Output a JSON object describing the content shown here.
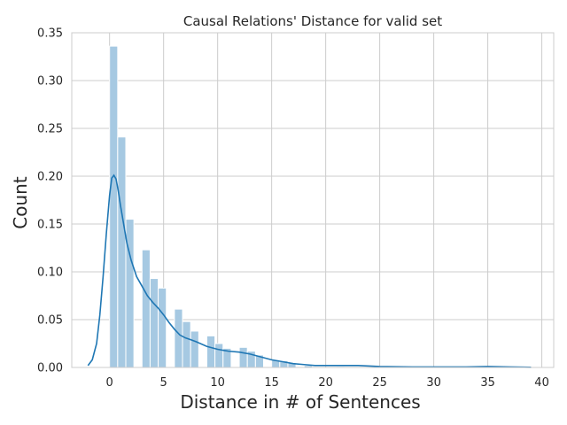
{
  "chart_data": {
    "type": "bar",
    "title": "Causal Relations' Distance for valid set",
    "xlabel": "Distance in # of Sentences",
    "ylabel": "Count",
    "xlim": [
      -3.5,
      41.1
    ],
    "ylim": [
      0,
      0.35
    ],
    "xticks": [
      "0",
      "5",
      "10",
      "15",
      "20",
      "25",
      "30",
      "35",
      "40"
    ],
    "yticks": [
      "0.00",
      "0.05",
      "0.10",
      "0.15",
      "0.20",
      "0.25",
      "0.30",
      "0.35"
    ],
    "grid": true,
    "bin_width": 0.75,
    "bars": [
      {
        "x": 0.0,
        "value": 0.336
      },
      {
        "x": 0.75,
        "value": 0.241
      },
      {
        "x": 1.5,
        "value": 0.155
      },
      {
        "x": 3.0,
        "value": 0.123
      },
      {
        "x": 3.75,
        "value": 0.093
      },
      {
        "x": 4.5,
        "value": 0.083
      },
      {
        "x": 6.0,
        "value": 0.061
      },
      {
        "x": 6.75,
        "value": 0.048
      },
      {
        "x": 7.5,
        "value": 0.038
      },
      {
        "x": 9.0,
        "value": 0.033
      },
      {
        "x": 9.75,
        "value": 0.025
      },
      {
        "x": 10.5,
        "value": 0.02
      },
      {
        "x": 12.0,
        "value": 0.021
      },
      {
        "x": 12.75,
        "value": 0.017
      },
      {
        "x": 13.5,
        "value": 0.013
      },
      {
        "x": 15.0,
        "value": 0.008
      },
      {
        "x": 15.75,
        "value": 0.007
      },
      {
        "x": 16.5,
        "value": 0.005
      },
      {
        "x": 18.0,
        "value": 0.002
      },
      {
        "x": 21.0,
        "value": 0.001
      },
      {
        "x": 24.75,
        "value": 0.001
      }
    ],
    "kde": {
      "x": [
        -2.0,
        -1.6,
        -1.2,
        -0.9,
        -0.6,
        -0.3,
        0.0,
        0.2,
        0.4,
        0.6,
        0.8,
        1.0,
        1.3,
        1.6,
        2.0,
        2.5,
        3.0,
        3.5,
        4.0,
        4.5,
        5.0,
        5.5,
        6.0,
        6.5,
        7.0,
        7.5,
        8.0,
        9.0,
        10.0,
        11.0,
        12.0,
        13.0,
        14.0,
        15.0,
        16.0,
        17.0,
        18.0,
        19.0,
        20.0,
        21.0,
        22.0,
        23.0,
        25.0,
        28.0,
        30.0,
        33.0,
        35.0,
        37.0,
        39.0
      ],
      "y": [
        0.002,
        0.008,
        0.025,
        0.055,
        0.095,
        0.14,
        0.18,
        0.198,
        0.201,
        0.197,
        0.185,
        0.17,
        0.15,
        0.13,
        0.112,
        0.095,
        0.085,
        0.075,
        0.068,
        0.062,
        0.055,
        0.047,
        0.04,
        0.034,
        0.031,
        0.029,
        0.027,
        0.022,
        0.019,
        0.017,
        0.016,
        0.014,
        0.011,
        0.008,
        0.006,
        0.004,
        0.003,
        0.002,
        0.002,
        0.002,
        0.002,
        0.002,
        0.001,
        0.0005,
        0.0005,
        0.0005,
        0.001,
        0.0005,
        0.0002
      ]
    }
  }
}
